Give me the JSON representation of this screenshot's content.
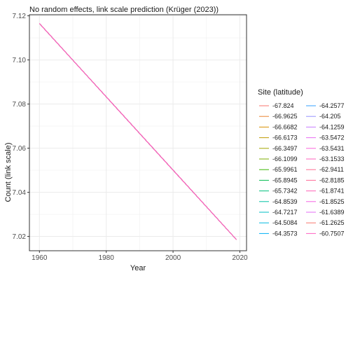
{
  "chart_data": {
    "type": "line",
    "title": "No random effects, link scale prediction (Krüger (2023))",
    "xlabel": "Year",
    "ylabel": "Count (link scale)",
    "xlim": [
      1957,
      2022
    ],
    "ylim": [
      7.0135,
      7.1205
    ],
    "x_ticks": [
      1960,
      1980,
      2000,
      2020
    ],
    "y_ticks": [
      7.02,
      7.04,
      7.06,
      7.08,
      7.1,
      7.12
    ],
    "y_tick_labels": [
      "7.02",
      "7.04",
      "7.06",
      "7.08",
      "7.10",
      "7.12"
    ],
    "x": [
      1960,
      2019
    ],
    "y": [
      7.1165,
      7.0185
    ],
    "grid": true,
    "legend_position": "right",
    "legend_title": "Site (latitude)",
    "series": [
      {
        "name": "-67.824",
        "color": "#F8766D"
      },
      {
        "name": "-66.9625",
        "color": "#EA8331"
      },
      {
        "name": "-66.6682",
        "color": "#D89000"
      },
      {
        "name": "-66.6173",
        "color": "#C09B00"
      },
      {
        "name": "-66.3497",
        "color": "#A3A500"
      },
      {
        "name": "-66.1099",
        "color": "#7CAE00"
      },
      {
        "name": "-65.9961",
        "color": "#39B600"
      },
      {
        "name": "-65.8945",
        "color": "#00BB4E"
      },
      {
        "name": "-65.7342",
        "color": "#00BF7D"
      },
      {
        "name": "-64.8539",
        "color": "#00C1A3"
      },
      {
        "name": "-64.7217",
        "color": "#00BFC4"
      },
      {
        "name": "-64.5084",
        "color": "#00BAE0"
      },
      {
        "name": "-64.3573",
        "color": "#00B0F6"
      },
      {
        "name": "-64.2577",
        "color": "#35A2FF"
      },
      {
        "name": "-64.205",
        "color": "#9590FF"
      },
      {
        "name": "-64.1259",
        "color": "#C77CFF"
      },
      {
        "name": "-63.5472",
        "color": "#E76BF3"
      },
      {
        "name": "-63.5431",
        "color": "#FA62DB"
      },
      {
        "name": "-63.1533",
        "color": "#FF62BC"
      },
      {
        "name": "-62.9411",
        "color": "#FF6C91"
      },
      {
        "name": "-62.8185",
        "color": "#FF6A98"
      },
      {
        "name": "-61.8741",
        "color": "#FF63B6"
      },
      {
        "name": "-61.8525",
        "color": "#F564E3"
      },
      {
        "name": "-61.6389",
        "color": "#E36EF6"
      },
      {
        "name": "-61.2625",
        "color": "#F8766D"
      },
      {
        "name": "-60.7507",
        "color": "#FF61C3"
      }
    ]
  }
}
